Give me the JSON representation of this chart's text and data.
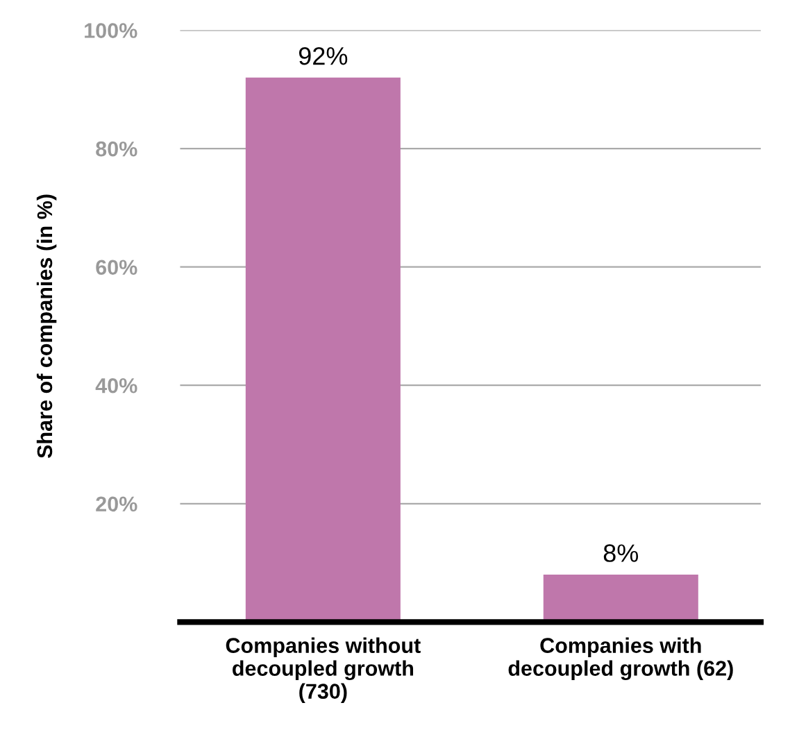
{
  "chart_data": {
    "type": "bar",
    "ylabel": "Share of companies (in %)",
    "categories": [
      "Companies without\ndecoupled growth\n(730)",
      "Companies with\ndecoupled growth (62)"
    ],
    "values": [
      92,
      8
    ],
    "color": "#bf77ab",
    "value_labels": [
      "92%",
      "8%"
    ],
    "ylim": [
      0,
      100
    ],
    "yticks": [
      {
        "value": 20,
        "label": "20%"
      },
      {
        "value": 40,
        "label": "40%"
      },
      {
        "value": 60,
        "label": "60%"
      },
      {
        "value": 80,
        "label": "80%"
      },
      {
        "value": 100,
        "label": "100%"
      }
    ],
    "grid": "y"
  }
}
